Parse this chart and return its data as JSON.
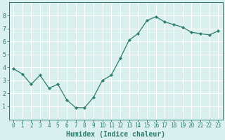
{
  "x": [
    0,
    1,
    2,
    3,
    4,
    5,
    6,
    7,
    8,
    9,
    10,
    11,
    12,
    13,
    14,
    15,
    16,
    17,
    18,
    19,
    20,
    21,
    22,
    23
  ],
  "y": [
    3.9,
    3.5,
    2.7,
    3.4,
    2.4,
    2.7,
    1.5,
    0.9,
    0.9,
    1.7,
    3.0,
    3.4,
    4.7,
    6.1,
    6.6,
    7.6,
    7.9,
    7.5,
    7.3,
    7.1,
    6.7,
    6.6,
    6.5,
    6.8
  ],
  "line_color": "#2e7d6e",
  "marker": "D",
  "marker_size": 2.2,
  "bg_color": "#d9f0ee",
  "grid_color": "#ffffff",
  "tick_color": "#2e7d6e",
  "label_color": "#2e7d6e",
  "xlabel": "Humidex (Indice chaleur)",
  "xlim": [
    -0.5,
    23.5
  ],
  "ylim": [
    0,
    9
  ],
  "yticks": [
    1,
    2,
    3,
    4,
    5,
    6,
    7,
    8
  ],
  "xticks": [
    0,
    1,
    2,
    3,
    4,
    5,
    6,
    7,
    8,
    9,
    10,
    11,
    12,
    13,
    14,
    15,
    16,
    17,
    18,
    19,
    20,
    21,
    22,
    23
  ],
  "tick_fontsize": 5.5,
  "xlabel_fontsize": 7.0
}
